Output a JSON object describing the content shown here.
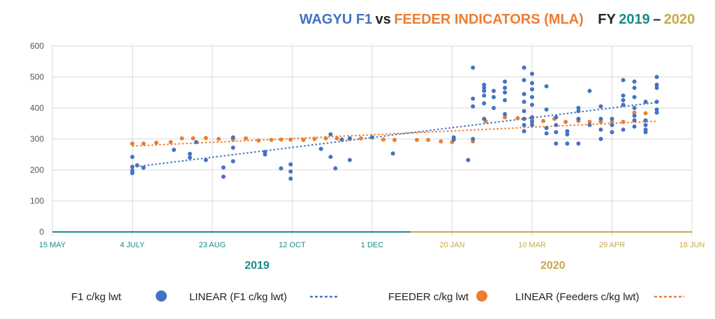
{
  "title": {
    "part1": "WAGYU F1",
    "part2": "vs",
    "part3": "FEEDER INDICATORS (MLA)",
    "part4": "FY",
    "part5": "2019",
    "part6": "–",
    "part7": "2020"
  },
  "colors": {
    "f1": "#4472c4",
    "feeder": "#ed7d31",
    "teal": "#1a8a8a",
    "gold": "#c9a74a",
    "dark": "#222222",
    "grid": "#d9d9d9"
  },
  "chart_data": {
    "type": "scatter",
    "ylim": [
      0,
      600
    ],
    "yticks": [
      0,
      100,
      200,
      300,
      400,
      500,
      600
    ],
    "xlim": [
      "2019-05-15",
      "2020-06-18"
    ],
    "xticks": [
      {
        "date": "2019-05-15",
        "label": "15 MAY",
        "fy": "2019"
      },
      {
        "date": "2019-07-04",
        "label": "4 JULY",
        "fy": "2019"
      },
      {
        "date": "2019-08-23",
        "label": "23 AUG",
        "fy": "2019"
      },
      {
        "date": "2019-10-12",
        "label": "12 OCT",
        "fy": "2019"
      },
      {
        "date": "2019-12-01",
        "label": "1 DEC",
        "fy": "2019"
      },
      {
        "date": "2020-01-20",
        "label": "20 JAN",
        "fy": "2020"
      },
      {
        "date": "2020-03-10",
        "label": "10 MAR",
        "fy": "2020"
      },
      {
        "date": "2020-04-29",
        "label": "29 APR",
        "fy": "2020"
      },
      {
        "date": "2020-06-18",
        "label": "18 JUN",
        "fy": "2020"
      }
    ],
    "fy_boundary": "2019-12-25",
    "fy_labels": [
      {
        "label": "2019",
        "center_date": "2019-09-20"
      },
      {
        "label": "2020",
        "center_date": "2020-03-23"
      }
    ],
    "series": [
      {
        "name": "F1 c/kg lwt",
        "color": "#4472c4",
        "points": [
          [
            "2019-07-04",
            190
          ],
          [
            "2019-07-04",
            198
          ],
          [
            "2019-07-04",
            210
          ],
          [
            "2019-07-04",
            242
          ],
          [
            "2019-07-07",
            215
          ],
          [
            "2019-07-11",
            207
          ],
          [
            "2019-07-30",
            265
          ],
          [
            "2019-08-09",
            240
          ],
          [
            "2019-08-09",
            252
          ],
          [
            "2019-08-13",
            290
          ],
          [
            "2019-08-19",
            232
          ],
          [
            "2019-08-30",
            178
          ],
          [
            "2019-08-30",
            208
          ],
          [
            "2019-09-05",
            228
          ],
          [
            "2019-09-05",
            272
          ],
          [
            "2019-09-05",
            305
          ],
          [
            "2019-09-25",
            250
          ],
          [
            "2019-09-25",
            258
          ],
          [
            "2019-10-05",
            205
          ],
          [
            "2019-10-11",
            172
          ],
          [
            "2019-10-11",
            195
          ],
          [
            "2019-10-11",
            218
          ],
          [
            "2019-10-30",
            268
          ],
          [
            "2019-11-05",
            242
          ],
          [
            "2019-11-05",
            315
          ],
          [
            "2019-11-08",
            205
          ],
          [
            "2019-11-12",
            298
          ],
          [
            "2019-11-17",
            232
          ],
          [
            "2019-11-17",
            302
          ],
          [
            "2019-12-01",
            305
          ],
          [
            "2019-12-14",
            253
          ],
          [
            "2020-01-21",
            298
          ],
          [
            "2020-01-21",
            305
          ],
          [
            "2020-01-30",
            232
          ],
          [
            "2020-02-02",
            530
          ],
          [
            "2020-02-02",
            430
          ],
          [
            "2020-02-02",
            405
          ],
          [
            "2020-02-02",
            300
          ],
          [
            "2020-02-09",
            440
          ],
          [
            "2020-02-09",
            455
          ],
          [
            "2020-02-09",
            465
          ],
          [
            "2020-02-09",
            475
          ],
          [
            "2020-02-09",
            415
          ],
          [
            "2020-02-09",
            365
          ],
          [
            "2020-02-15",
            400
          ],
          [
            "2020-02-15",
            435
          ],
          [
            "2020-02-15",
            455
          ],
          [
            "2020-02-22",
            380
          ],
          [
            "2020-02-22",
            425
          ],
          [
            "2020-02-22",
            450
          ],
          [
            "2020-02-22",
            485
          ],
          [
            "2020-02-22",
            465
          ],
          [
            "2020-03-05",
            530
          ],
          [
            "2020-03-05",
            490
          ],
          [
            "2020-03-05",
            445
          ],
          [
            "2020-03-05",
            420
          ],
          [
            "2020-03-05",
            390
          ],
          [
            "2020-03-05",
            365
          ],
          [
            "2020-03-05",
            345
          ],
          [
            "2020-03-05",
            325
          ],
          [
            "2020-03-10",
            510
          ],
          [
            "2020-03-10",
            480
          ],
          [
            "2020-03-10",
            460
          ],
          [
            "2020-03-10",
            435
          ],
          [
            "2020-03-10",
            410
          ],
          [
            "2020-03-10",
            370
          ],
          [
            "2020-03-10",
            355
          ],
          [
            "2020-03-10",
            345
          ],
          [
            "2020-03-19",
            470
          ],
          [
            "2020-03-19",
            395
          ],
          [
            "2020-03-19",
            335
          ],
          [
            "2020-03-19",
            318
          ],
          [
            "2020-03-25",
            370
          ],
          [
            "2020-03-25",
            345
          ],
          [
            "2020-03-25",
            322
          ],
          [
            "2020-03-25",
            285
          ],
          [
            "2020-04-01",
            325
          ],
          [
            "2020-04-01",
            315
          ],
          [
            "2020-04-01",
            285
          ],
          [
            "2020-04-08",
            400
          ],
          [
            "2020-04-08",
            390
          ],
          [
            "2020-04-08",
            365
          ],
          [
            "2020-04-08",
            285
          ],
          [
            "2020-04-15",
            455
          ],
          [
            "2020-04-15",
            345
          ],
          [
            "2020-04-22",
            405
          ],
          [
            "2020-04-22",
            365
          ],
          [
            "2020-04-22",
            330
          ],
          [
            "2020-04-22",
            300
          ],
          [
            "2020-04-29",
            365
          ],
          [
            "2020-04-29",
            345
          ],
          [
            "2020-04-29",
            322
          ],
          [
            "2020-05-06",
            490
          ],
          [
            "2020-05-06",
            440
          ],
          [
            "2020-05-06",
            425
          ],
          [
            "2020-05-06",
            410
          ],
          [
            "2020-05-06",
            330
          ],
          [
            "2020-05-13",
            485
          ],
          [
            "2020-05-13",
            465
          ],
          [
            "2020-05-13",
            435
          ],
          [
            "2020-05-13",
            400
          ],
          [
            "2020-05-13",
            375
          ],
          [
            "2020-05-13",
            360
          ],
          [
            "2020-05-13",
            340
          ],
          [
            "2020-05-20",
            420
          ],
          [
            "2020-05-20",
            360
          ],
          [
            "2020-05-20",
            345
          ],
          [
            "2020-05-20",
            330
          ],
          [
            "2020-05-20",
            322
          ],
          [
            "2020-05-27",
            500
          ],
          [
            "2020-05-27",
            475
          ],
          [
            "2020-05-27",
            465
          ],
          [
            "2020-05-27",
            420
          ],
          [
            "2020-05-27",
            395
          ],
          [
            "2020-05-27",
            385
          ]
        ]
      },
      {
        "name": "FEEDER c/kg lwt",
        "color": "#ed7d31",
        "points": [
          [
            "2019-07-04",
            285
          ],
          [
            "2019-07-11",
            285
          ],
          [
            "2019-07-19",
            288
          ],
          [
            "2019-07-28",
            290
          ],
          [
            "2019-08-04",
            302
          ],
          [
            "2019-08-11",
            302
          ],
          [
            "2019-08-19",
            303
          ],
          [
            "2019-08-27",
            300
          ],
          [
            "2019-09-05",
            298
          ],
          [
            "2019-09-13",
            302
          ],
          [
            "2019-09-21",
            295
          ],
          [
            "2019-09-29",
            297
          ],
          [
            "2019-10-05",
            298
          ],
          [
            "2019-10-11",
            298
          ],
          [
            "2019-10-19",
            297
          ],
          [
            "2019-10-26",
            300
          ],
          [
            "2019-11-02",
            302
          ],
          [
            "2019-11-09",
            302
          ],
          [
            "2019-11-17",
            300
          ],
          [
            "2019-11-24",
            302
          ],
          [
            "2019-12-01",
            305
          ],
          [
            "2019-12-08",
            298
          ],
          [
            "2019-12-15",
            297
          ],
          [
            "2019-12-29",
            297
          ],
          [
            "2020-01-05",
            297
          ],
          [
            "2020-01-13",
            292
          ],
          [
            "2020-01-20",
            290
          ],
          [
            "2020-02-02",
            292
          ],
          [
            "2020-02-10",
            357
          ],
          [
            "2020-02-22",
            370
          ],
          [
            "2020-03-01",
            367
          ],
          [
            "2020-03-05",
            365
          ],
          [
            "2020-03-10",
            362
          ],
          [
            "2020-03-17",
            358
          ],
          [
            "2020-03-24",
            365
          ],
          [
            "2020-03-31",
            355
          ],
          [
            "2020-04-08",
            358
          ],
          [
            "2020-04-15",
            355
          ],
          [
            "2020-04-22",
            355
          ],
          [
            "2020-04-29",
            356
          ],
          [
            "2020-05-06",
            355
          ],
          [
            "2020-05-13",
            385
          ],
          [
            "2020-05-20",
            383
          ]
        ]
      }
    ],
    "trendlines": [
      {
        "name": "LINEAR (F1 c/kg lwt)",
        "color": "#4472c4",
        "start": [
          "2019-07-04",
          209
        ],
        "end": [
          "2020-05-27",
          418
        ]
      },
      {
        "name": "LINEAR (Feeders c/kg lwt)",
        "color": "#ed7d31",
        "start": [
          "2019-07-04",
          277
        ],
        "end": [
          "2020-05-27",
          357
        ]
      }
    ]
  },
  "legend": {
    "f1_label": "F1 c/kg lwt",
    "f1_linear_label": "LINEAR (F1 c/kg lwt)",
    "feeder_label": "FEEDER c/kg lwt",
    "feeder_linear_label": "LINEAR (Feeders c/kg lwt)"
  }
}
